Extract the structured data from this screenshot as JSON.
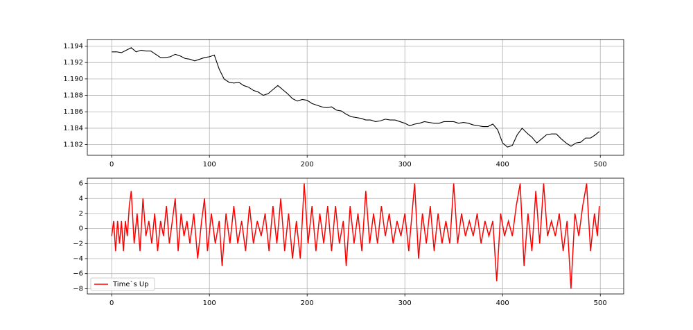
{
  "chart_data": [
    {
      "type": "line",
      "grid": true,
      "x": [
        0,
        5,
        10,
        15,
        20,
        25,
        30,
        35,
        40,
        45,
        50,
        55,
        60,
        65,
        70,
        75,
        80,
        85,
        90,
        95,
        100,
        105,
        110,
        115,
        120,
        125,
        130,
        135,
        140,
        145,
        150,
        155,
        160,
        165,
        170,
        175,
        180,
        185,
        190,
        195,
        200,
        205,
        210,
        215,
        220,
        225,
        230,
        235,
        240,
        245,
        250,
        255,
        260,
        265,
        270,
        275,
        280,
        285,
        290,
        295,
        300,
        305,
        310,
        315,
        320,
        325,
        330,
        335,
        340,
        345,
        350,
        355,
        360,
        365,
        370,
        375,
        380,
        385,
        390,
        395,
        400,
        405,
        410,
        415,
        420,
        425,
        430,
        435,
        440,
        445,
        450,
        455,
        460,
        465,
        470,
        475,
        480,
        485,
        490,
        495,
        499
      ],
      "series": [
        {
          "color": "#000000",
          "values": [
            1.1933,
            1.1933,
            1.1932,
            1.1935,
            1.1938,
            1.1933,
            1.1935,
            1.1934,
            1.1934,
            1.193,
            1.1926,
            1.1926,
            1.1927,
            1.193,
            1.1928,
            1.1925,
            1.1924,
            1.1922,
            1.1924,
            1.1926,
            1.1927,
            1.1929,
            1.1912,
            1.19,
            1.1896,
            1.1895,
            1.1896,
            1.1892,
            1.189,
            1.1886,
            1.1884,
            1.188,
            1.1882,
            1.1887,
            1.1892,
            1.1887,
            1.1882,
            1.1876,
            1.1873,
            1.1875,
            1.1874,
            1.187,
            1.1868,
            1.1866,
            1.1865,
            1.1866,
            1.1862,
            1.1861,
            1.1857,
            1.1854,
            1.1853,
            1.1852,
            1.185,
            1.185,
            1.1848,
            1.1849,
            1.1851,
            1.185,
            1.185,
            1.1848,
            1.1846,
            1.1843,
            1.1845,
            1.1846,
            1.1848,
            1.1847,
            1.1846,
            1.1846,
            1.1848,
            1.1848,
            1.1848,
            1.1846,
            1.1847,
            1.1846,
            1.1844,
            1.1843,
            1.1842,
            1.1842,
            1.1845,
            1.1838,
            1.1822,
            1.1817,
            1.1819,
            1.1832,
            1.184,
            1.1834,
            1.1829,
            1.1822,
            1.1827,
            1.1832,
            1.1833,
            1.1833,
            1.1827,
            1.1822,
            1.1818,
            1.1822,
            1.1823,
            1.1828,
            1.1828,
            1.1832,
            1.1836
          ]
        }
      ],
      "xlim": [
        -24.95,
        523.95
      ],
      "xticks": [
        0,
        100,
        200,
        300,
        400,
        500
      ],
      "ylim": [
        1.1807,
        1.1948
      ],
      "yticks": [
        1.182,
        1.184,
        1.186,
        1.188,
        {
          "value": 1.19,
          "label": "1.190"
        },
        1.192,
        1.194
      ]
    },
    {
      "type": "line",
      "grid": true,
      "legend": "lower left",
      "x": [
        0,
        2,
        4,
        6,
        8,
        10,
        12,
        14,
        16,
        18,
        20,
        23,
        26,
        29,
        32,
        35,
        38,
        41,
        44,
        47,
        50,
        53,
        56,
        59,
        62,
        65,
        68,
        71,
        74,
        77,
        80,
        84,
        88,
        92,
        95,
        98,
        102,
        106,
        110,
        113,
        117,
        121,
        125,
        129,
        133,
        137,
        141,
        145,
        149,
        153,
        157,
        161,
        165,
        169,
        173,
        177,
        181,
        185,
        189,
        193,
        197,
        201,
        205,
        209,
        213,
        217,
        221,
        225,
        229,
        233,
        237,
        240,
        244,
        248,
        252,
        256,
        260,
        264,
        268,
        272,
        276,
        280,
        284,
        288,
        292,
        296,
        300,
        304,
        308,
        310,
        314,
        318,
        322,
        326,
        330,
        334,
        338,
        342,
        346,
        350,
        354,
        358,
        362,
        366,
        370,
        374,
        378,
        382,
        386,
        390,
        394,
        398,
        402,
        406,
        410,
        414,
        418,
        422,
        426,
        430,
        434,
        438,
        442,
        446,
        450,
        454,
        458,
        462,
        466,
        470,
        474,
        478,
        482,
        486,
        490,
        494,
        497,
        499
      ],
      "series": [
        {
          "name": "Time`s Up",
          "color": "#ff0000",
          "values": [
            -1,
            1,
            -3,
            1,
            -2,
            1,
            -3,
            1,
            -1,
            3,
            5,
            -2,
            2,
            -3,
            4,
            -1,
            1,
            -2,
            2,
            -3,
            1,
            -1,
            3,
            -2,
            1,
            4,
            -3,
            2,
            -1,
            1,
            -2,
            2,
            -4,
            1,
            4,
            -3,
            2,
            -2,
            1,
            -5,
            2,
            -2,
            3,
            -2,
            1,
            -3,
            3,
            -2,
            1,
            -1,
            2,
            -3,
            3,
            -2,
            4,
            -3,
            2,
            -4,
            1,
            -4,
            6,
            -2,
            3,
            -3,
            2,
            -2,
            3,
            -3,
            3,
            -2,
            1,
            -5,
            3,
            -2,
            2,
            -3,
            5,
            -2,
            2,
            -2,
            3,
            -1,
            2,
            -2,
            1,
            -1,
            2,
            -3,
            3,
            6,
            -4,
            2,
            -2,
            3,
            -3,
            2,
            -2,
            1,
            -2,
            6,
            -2,
            2,
            -1,
            1,
            -1,
            2,
            -2,
            1,
            -1,
            1,
            -7,
            2,
            -1,
            1,
            -1,
            3,
            6,
            -5,
            2,
            -3,
            5,
            -2,
            6,
            -1,
            1,
            -1,
            2,
            -3,
            1,
            -8,
            2,
            -1,
            3,
            6,
            -3,
            2,
            -1,
            3
          ]
        }
      ],
      "xlim": [
        -24.95,
        523.95
      ],
      "xticks": [
        0,
        100,
        200,
        300,
        400,
        500
      ],
      "ylim": [
        -8.7,
        6.7
      ],
      "yticks": [
        {
          "value": -8,
          "label": "−8"
        },
        {
          "value": -6,
          "label": "−6"
        },
        {
          "value": -4,
          "label": "−4"
        },
        {
          "value": -2,
          "label": "−2"
        },
        0,
        2,
        4,
        6
      ]
    }
  ]
}
